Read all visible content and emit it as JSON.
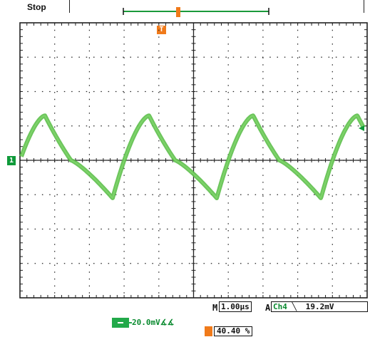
{
  "status": "Stop",
  "trigger_marker_label": "T",
  "channel_marker_label": "1",
  "timebase_prefix": "M",
  "timebase": "1.00µs",
  "trigger_prefix": "A",
  "trigger_channel": "Ch4",
  "trigger_slope_icon": "falling-edge-icon",
  "trigger_level": "19.2mV",
  "channel_scale": "20.0mV∡∡",
  "trigger_position": "40.40 %",
  "colors": {
    "waveform": "#5cbf4a",
    "waveform_core": "#7ed36a",
    "trigger_accent": "#f07a1a",
    "channel_accent": "#0f9a3a",
    "record_bar": "#1a9a3a",
    "grid": "#222222"
  },
  "display": {
    "grid": true,
    "divisions_x": 10,
    "divisions_y": 8,
    "waveform_shape": "asymmetric-sawtooth",
    "period_divisions": 3.0,
    "peak_divisions": 1.3,
    "trough_divisions": -1.1
  }
}
